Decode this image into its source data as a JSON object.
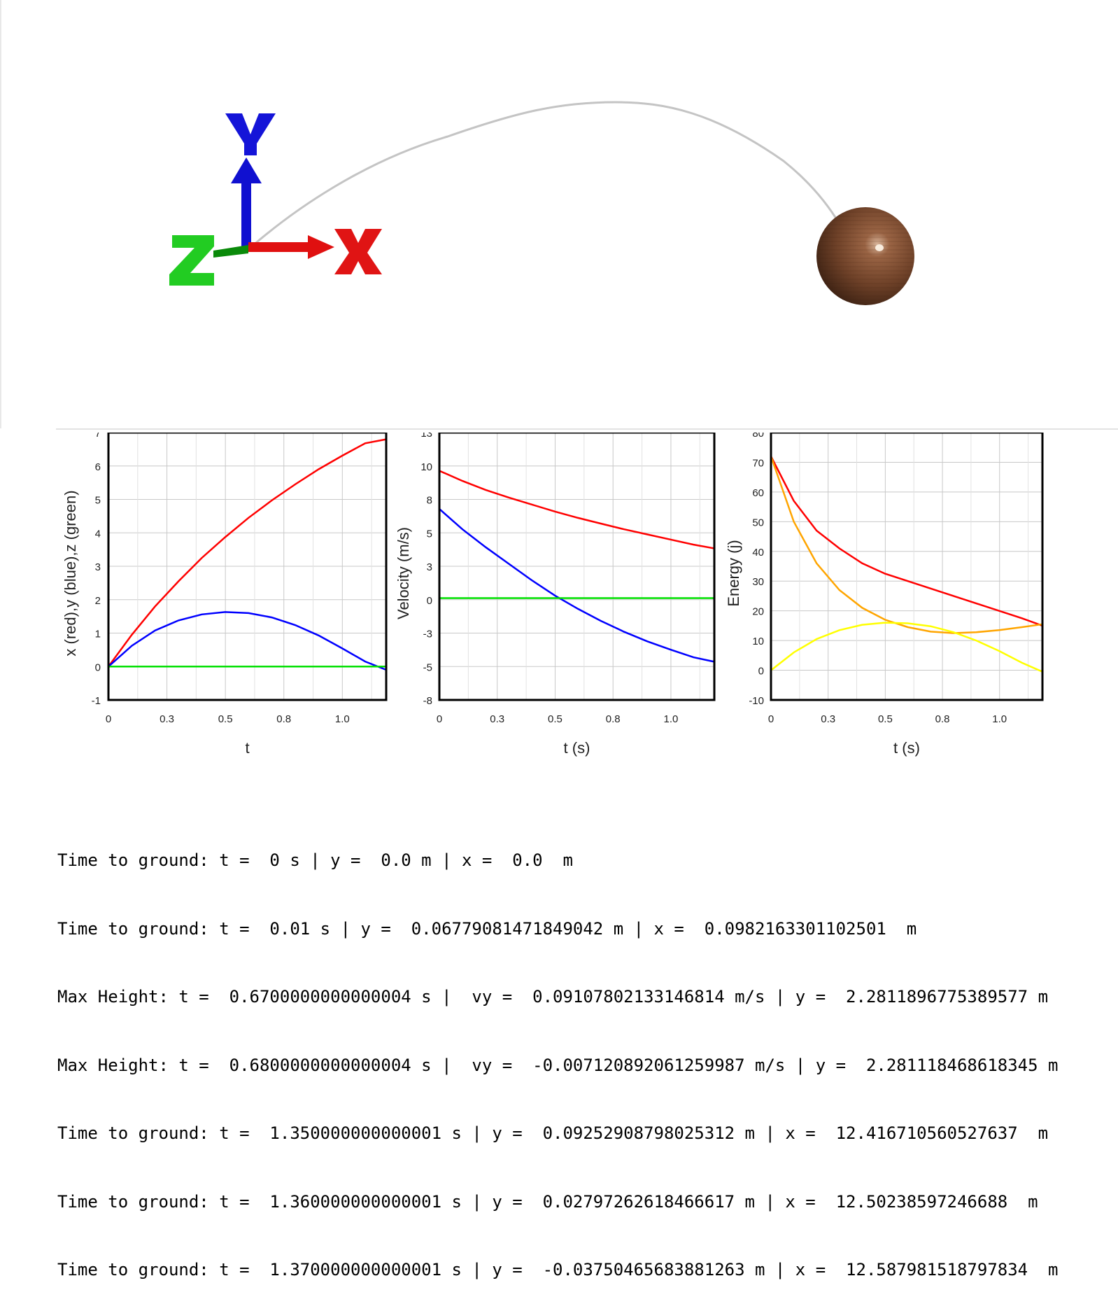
{
  "scene": {
    "axes_labels": {
      "x": "X",
      "y": "Y",
      "z": "Z"
    },
    "axis_colors": {
      "x": "#e01010",
      "y": "#1414d8",
      "z": "#14c814"
    },
    "ball_color": "#7a4a2e",
    "trail_color": "#bdbdbd",
    "icons": [
      "xyz-axes-gizmo",
      "wooden-ball"
    ]
  },
  "charts": [
    {
      "id": "position",
      "ylabel": "x (red),y (blue),z (green)",
      "xlabel": "t",
      "yticks": [
        "7",
        "6",
        "5",
        "4",
        "3",
        "2",
        "1",
        "0",
        "-1"
      ],
      "xticks": [
        "0",
        "0.3",
        "0.5",
        "0.8",
        "1.0"
      ]
    },
    {
      "id": "velocity",
      "ylabel": "Velocity (m/s)",
      "xlabel": "t (s)",
      "yticks": [
        "13",
        "10",
        "8",
        "5",
        "3",
        "0",
        "-3",
        "-5",
        "-8"
      ],
      "xticks": [
        "0",
        "0.3",
        "0.5",
        "0.8",
        "1.0"
      ]
    },
    {
      "id": "energy",
      "ylabel": "Energy (j)",
      "xlabel": "t (s)",
      "yticks": [
        "80",
        "70",
        "60",
        "50",
        "40",
        "30",
        "20",
        "10",
        "0",
        "-10"
      ],
      "xticks": [
        "0",
        "0.3",
        "0.5",
        "0.8",
        "1.0"
      ]
    }
  ],
  "chart_data": [
    {
      "type": "line",
      "xlabel": "t",
      "ylabel": "x (red),y (blue),z (green)",
      "xlim": [
        0,
        1.19
      ],
      "ylim": [
        -1,
        7
      ],
      "grid": true,
      "series": [
        {
          "color": "#ff0000",
          "x": [
            0,
            0.1,
            0.2,
            0.3,
            0.4,
            0.5,
            0.6,
            0.7,
            0.8,
            0.9,
            1.0,
            1.1,
            1.19
          ],
          "y": [
            0,
            0.95,
            1.8,
            2.55,
            3.25,
            3.87,
            4.45,
            4.97,
            5.45,
            5.9,
            6.3,
            6.68,
            6.8
          ]
        },
        {
          "color": "#0000ff",
          "x": [
            0,
            0.1,
            0.2,
            0.3,
            0.4,
            0.5,
            0.6,
            0.7,
            0.8,
            0.9,
            1.0,
            1.1,
            1.19
          ],
          "y": [
            0,
            0.62,
            1.08,
            1.38,
            1.56,
            1.63,
            1.6,
            1.47,
            1.24,
            0.93,
            0.55,
            0.15,
            -0.1
          ]
        },
        {
          "color": "#00e000",
          "x": [
            0,
            1.19
          ],
          "y": [
            0,
            0
          ]
        }
      ]
    },
    {
      "type": "line",
      "xlabel": "t (s)",
      "ylabel": "Velocity (m/s)",
      "xlim": [
        0,
        1.19
      ],
      "ylim": [
        -8,
        13
      ],
      "grid": true,
      "series": [
        {
          "color": "#ff0000",
          "x": [
            0,
            0.1,
            0.2,
            0.3,
            0.4,
            0.5,
            0.6,
            0.7,
            0.8,
            0.9,
            1.0,
            1.1,
            1.19
          ],
          "y": [
            10.0,
            9.2,
            8.5,
            7.9,
            7.35,
            6.8,
            6.3,
            5.85,
            5.4,
            5.0,
            4.6,
            4.2,
            3.9
          ]
        },
        {
          "color": "#0000ff",
          "x": [
            0,
            0.1,
            0.2,
            0.3,
            0.4,
            0.5,
            0.6,
            0.7,
            0.8,
            0.9,
            1.0,
            1.1,
            1.19
          ],
          "y": [
            7.0,
            5.4,
            4.0,
            2.7,
            1.4,
            0.2,
            -0.85,
            -1.8,
            -2.65,
            -3.4,
            -4.05,
            -4.65,
            -5.0
          ]
        },
        {
          "color": "#00e000",
          "x": [
            0,
            1.19
          ],
          "y": [
            0,
            0
          ]
        }
      ]
    },
    {
      "type": "line",
      "xlabel": "t (s)",
      "ylabel": "Energy (j)",
      "xlim": [
        0,
        1.19
      ],
      "ylim": [
        -10,
        80
      ],
      "grid": true,
      "series": [
        {
          "color": "#ff0000",
          "x": [
            0,
            0.1,
            0.2,
            0.3,
            0.4,
            0.5,
            0.6,
            0.7,
            0.8,
            0.9,
            1.0,
            1.1,
            1.19
          ],
          "y": [
            72,
            57,
            47,
            41,
            36,
            32.5,
            30,
            27.5,
            25,
            22.5,
            20,
            17.5,
            15
          ]
        },
        {
          "color": "#ffa500",
          "x": [
            0,
            0.1,
            0.2,
            0.3,
            0.4,
            0.5,
            0.6,
            0.7,
            0.8,
            0.9,
            1.0,
            1.1,
            1.19
          ],
          "y": [
            72,
            50,
            36,
            27,
            21,
            17,
            14.5,
            13,
            12.5,
            12.8,
            13.5,
            14.5,
            15.5
          ]
        },
        {
          "color": "#ffff00",
          "x": [
            0,
            0.1,
            0.2,
            0.3,
            0.4,
            0.5,
            0.6,
            0.7,
            0.8,
            0.9,
            1.0,
            1.1,
            1.19
          ],
          "y": [
            0,
            6,
            10.5,
            13.5,
            15.3,
            16,
            15.8,
            14.8,
            12.8,
            10,
            6.5,
            2.5,
            -0.5
          ]
        }
      ]
    }
  ],
  "output_lines": [
    "Time to ground: t =  0 s | y =  0.0 m | x =  0.0  m",
    "Time to ground: t =  0.01 s | y =  0.06779081471849042 m | x =  0.0982163301102501  m",
    "Max Height: t =  0.6700000000000004 s |  vy =  0.09107802133146814 m/s | y =  2.2811896775389577 m",
    "Max Height: t =  0.6800000000000004 s |  vy =  -0.007120892061259987 m/s | y =  2.281118468618345 m",
    "Time to ground: t =  1.350000000000001 s | y =  0.09252908798025312 m | x =  12.416710560527637  m",
    "Time to ground: t =  1.360000000000001 s | y =  0.02797262618466617 m | x =  12.50238597246688  m",
    "Time to ground: t =  1.370000000000001 s | y =  -0.03750465683881263 m | x =  12.587981518797834  m"
  ]
}
